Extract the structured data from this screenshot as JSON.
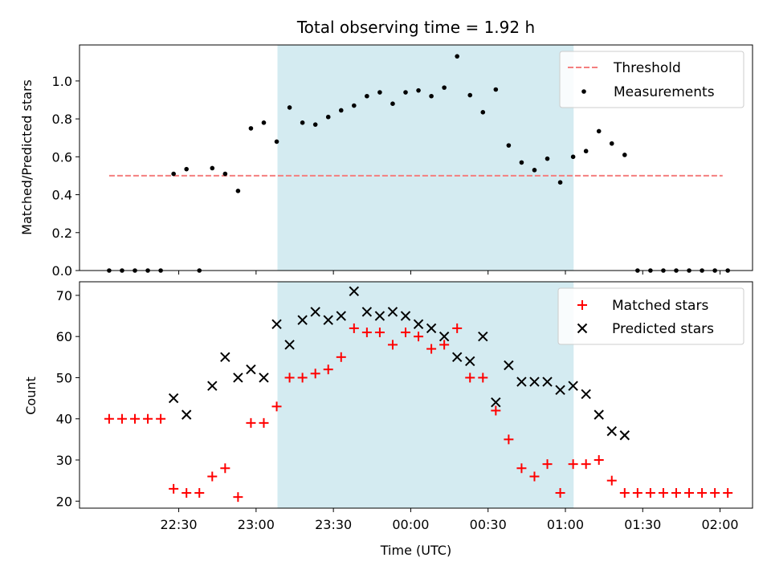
{
  "chart_data": {
    "title": "Total observing time = 1.92 h",
    "xlabel": "Time (UTC)",
    "x_tick_labels": [
      "22:30",
      "23:00",
      "23:30",
      "00:00",
      "00:30",
      "01:00",
      "01:30",
      "02:00"
    ],
    "x_tick_minutes": [
      1350,
      1380,
      1410,
      1440,
      1470,
      1500,
      1530,
      1560
    ],
    "xlim": [
      1311.5,
      1572.6
    ],
    "shaded_region": [
      1388.3,
      1503.2
    ],
    "shaded_color": "#d4ebf1",
    "top": {
      "type": "scatter",
      "ylabel": "Matched/Predicted stars",
      "ylim": [
        0,
        1.19
      ],
      "y_ticks": [
        0,
        0.2,
        0.4,
        0.6,
        0.8,
        1.0
      ],
      "y_tick_labels": [
        "0.0",
        "0.2",
        "0.4",
        "0.6",
        "0.8",
        "1.0"
      ],
      "threshold": {
        "name": "Threshold",
        "value": 0.5,
        "x_start": 1323,
        "x_end": 1561,
        "color": "#f47f7f"
      },
      "measurements": {
        "name": "Measurements",
        "color": "#000000",
        "x": [
          1323,
          1328,
          1333,
          1338,
          1343,
          1348,
          1353,
          1358,
          1363,
          1368,
          1373,
          1378,
          1383,
          1388,
          1393,
          1398,
          1403,
          1408,
          1413,
          1418,
          1423,
          1428,
          1433,
          1438,
          1443,
          1448,
          1453,
          1458,
          1463,
          1468,
          1473,
          1478,
          1483,
          1488,
          1493,
          1498,
          1503,
          1508,
          1513,
          1518,
          1523,
          1528,
          1533,
          1538,
          1543,
          1548,
          1553,
          1558,
          1563
        ],
        "y": [
          0,
          0,
          0,
          0,
          0,
          0.51,
          0.535,
          0,
          0.54,
          0.51,
          0.42,
          0.75,
          0.78,
          0.68,
          0.86,
          0.78,
          0.77,
          0.81,
          0.845,
          0.87,
          0.92,
          0.94,
          0.88,
          0.94,
          0.95,
          0.92,
          0.965,
          1.13,
          0.925,
          0.835,
          0.955,
          0.66,
          0.57,
          0.53,
          0.59,
          0.465,
          0.6,
          0.63,
          0.735,
          0.67,
          0.61,
          0,
          0,
          0,
          0,
          0,
          0,
          0,
          0
        ]
      },
      "legend_position": "top-right"
    },
    "bottom": {
      "type": "scatter",
      "ylabel": "Count",
      "ylim": [
        18.3,
        73.3
      ],
      "y_ticks": [
        20,
        30,
        40,
        50,
        60,
        70
      ],
      "y_tick_labels": [
        "20",
        "30",
        "40",
        "50",
        "60",
        "70"
      ],
      "series": [
        {
          "name": "Matched stars",
          "color": "#ff0000",
          "marker": "plus",
          "x": [
            1323,
            1328,
            1333,
            1338,
            1343,
            1348,
            1353,
            1358,
            1363,
            1368,
            1373,
            1378,
            1383,
            1388,
            1393,
            1398,
            1403,
            1408,
            1413,
            1418,
            1423,
            1428,
            1433,
            1438,
            1443,
            1448,
            1453,
            1458,
            1463,
            1468,
            1473,
            1478,
            1483,
            1488,
            1493,
            1498,
            1503,
            1508,
            1513,
            1518,
            1523,
            1528,
            1533,
            1538,
            1543,
            1548,
            1553,
            1558,
            1563
          ],
          "y": [
            40,
            40,
            40,
            40,
            40,
            23,
            22,
            22,
            26,
            28,
            21,
            39,
            39,
            43,
            50,
            50,
            51,
            52,
            55,
            62,
            61,
            61,
            58,
            61,
            60,
            57,
            58,
            62,
            50,
            50,
            42,
            35,
            28,
            26,
            29,
            22,
            29,
            29,
            30,
            25,
            22,
            22,
            22,
            22,
            22,
            22,
            22,
            22,
            22
          ]
        },
        {
          "name": "Predicted stars",
          "color": "#000000",
          "marker": "x",
          "x": [
            1348,
            1353,
            1363,
            1368,
            1373,
            1378,
            1383,
            1388,
            1393,
            1398,
            1403,
            1408,
            1413,
            1418,
            1423,
            1428,
            1433,
            1438,
            1443,
            1448,
            1453,
            1458,
            1463,
            1468,
            1473,
            1478,
            1483,
            1488,
            1493,
            1498,
            1503,
            1508,
            1513,
            1518,
            1523
          ],
          "y": [
            45,
            41,
            48,
            55,
            50,
            52,
            50,
            63,
            58,
            64,
            66,
            64,
            65,
            71,
            66,
            65,
            66,
            65,
            63,
            62,
            60,
            55,
            54,
            60,
            44,
            53,
            49,
            49,
            49,
            47,
            48,
            46,
            41,
            37,
            36
          ]
        }
      ],
      "legend_position": "top-right"
    }
  }
}
